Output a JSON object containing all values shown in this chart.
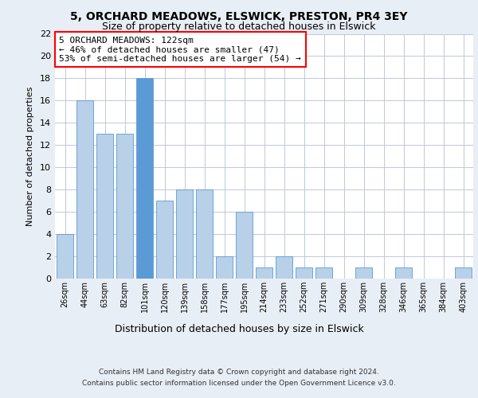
{
  "title1": "5, ORCHARD MEADOWS, ELSWICK, PRESTON, PR4 3EY",
  "title2": "Size of property relative to detached houses in Elswick",
  "xlabel": "Distribution of detached houses by size in Elswick",
  "ylabel": "Number of detached properties",
  "categories": [
    "26sqm",
    "44sqm",
    "63sqm",
    "82sqm",
    "101sqm",
    "120sqm",
    "139sqm",
    "158sqm",
    "177sqm",
    "195sqm",
    "214sqm",
    "233sqm",
    "252sqm",
    "271sqm",
    "290sqm",
    "309sqm",
    "328sqm",
    "346sqm",
    "365sqm",
    "384sqm",
    "403sqm"
  ],
  "values": [
    4,
    16,
    13,
    13,
    18,
    7,
    8,
    8,
    2,
    6,
    1,
    2,
    1,
    1,
    0,
    1,
    0,
    1,
    0,
    0,
    1
  ],
  "bar_color_default": "#b8d0e8",
  "bar_color_highlight": "#5b9bd5",
  "highlight_index": 4,
  "annotation_box_text": "5 ORCHARD MEADOWS: 122sqm\n← 46% of detached houses are smaller (47)\n53% of semi-detached houses are larger (54) →",
  "footer1": "Contains HM Land Registry data © Crown copyright and database right 2024.",
  "footer2": "Contains public sector information licensed under the Open Government Licence v3.0.",
  "ylim": [
    0,
    22
  ],
  "yticks": [
    0,
    2,
    4,
    6,
    8,
    10,
    12,
    14,
    16,
    18,
    20,
    22
  ],
  "bg_color": "#e8eef5",
  "plot_bg_color": "#ffffff"
}
